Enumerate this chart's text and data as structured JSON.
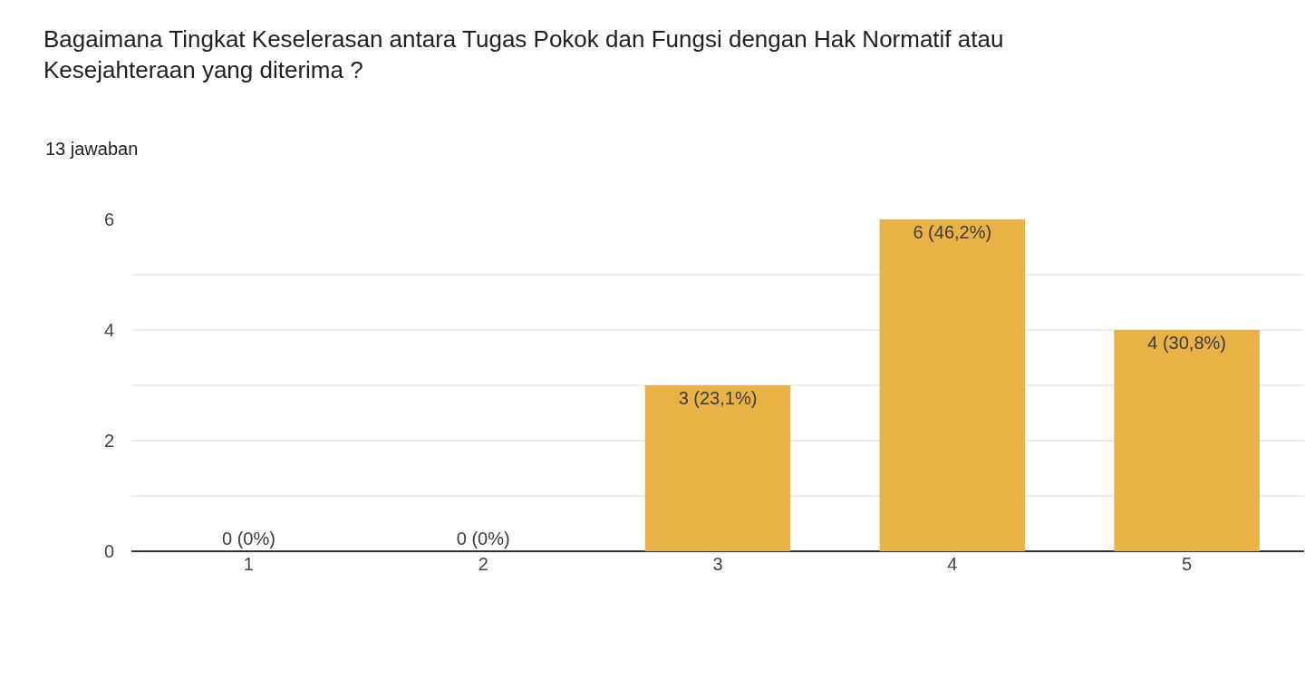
{
  "chart_data": {
    "type": "bar",
    "title": "Bagaimana Tingkat Keselerasan antara Tugas Pokok dan Fungsi dengan Hak Normatif atau Kesejahteraan yang diterima ?",
    "subtitle": "13 jawaban",
    "categories": [
      "1",
      "2",
      "3",
      "4",
      "5"
    ],
    "values": [
      0,
      0,
      3,
      6,
      4
    ],
    "value_labels": [
      "0 (0%)",
      "0 (0%)",
      "3 (23,1%)",
      "6 (46,2%)",
      "4 (30,8%)"
    ],
    "color": "#e8b247",
    "ylim": [
      0,
      6
    ],
    "yticks": [
      0,
      {
        "value": 1,
        "label": null
      },
      2,
      {
        "value": 3,
        "label": null
      },
      4,
      {
        "value": 5,
        "label": null
      },
      6
    ],
    "grid": "y"
  }
}
